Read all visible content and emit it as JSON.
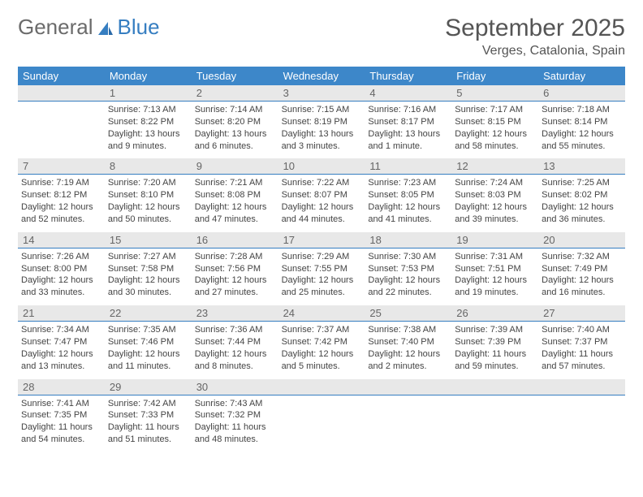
{
  "logo": {
    "text1": "General",
    "text2": "Blue"
  },
  "title": "September 2025",
  "location": "Verges, Catalonia, Spain",
  "colors": {
    "header_bg": "#3d87c9",
    "header_text": "#ffffff",
    "daynum_bg": "#e8e8e8",
    "daynum_border": "#367ec1",
    "body_text": "#444444",
    "logo_gray": "#6b6b6b",
    "logo_blue": "#367ec1"
  },
  "day_names": [
    "Sunday",
    "Monday",
    "Tuesday",
    "Wednesday",
    "Thursday",
    "Friday",
    "Saturday"
  ],
  "weeks": [
    {
      "nums": [
        "",
        "1",
        "2",
        "3",
        "4",
        "5",
        "6"
      ],
      "cells": [
        {
          "sunrise": "",
          "sunset": "",
          "daylight": ""
        },
        {
          "sunrise": "Sunrise: 7:13 AM",
          "sunset": "Sunset: 8:22 PM",
          "daylight": "Daylight: 13 hours and 9 minutes."
        },
        {
          "sunrise": "Sunrise: 7:14 AM",
          "sunset": "Sunset: 8:20 PM",
          "daylight": "Daylight: 13 hours and 6 minutes."
        },
        {
          "sunrise": "Sunrise: 7:15 AM",
          "sunset": "Sunset: 8:19 PM",
          "daylight": "Daylight: 13 hours and 3 minutes."
        },
        {
          "sunrise": "Sunrise: 7:16 AM",
          "sunset": "Sunset: 8:17 PM",
          "daylight": "Daylight: 13 hours and 1 minute."
        },
        {
          "sunrise": "Sunrise: 7:17 AM",
          "sunset": "Sunset: 8:15 PM",
          "daylight": "Daylight: 12 hours and 58 minutes."
        },
        {
          "sunrise": "Sunrise: 7:18 AM",
          "sunset": "Sunset: 8:14 PM",
          "daylight": "Daylight: 12 hours and 55 minutes."
        }
      ]
    },
    {
      "nums": [
        "7",
        "8",
        "9",
        "10",
        "11",
        "12",
        "13"
      ],
      "cells": [
        {
          "sunrise": "Sunrise: 7:19 AM",
          "sunset": "Sunset: 8:12 PM",
          "daylight": "Daylight: 12 hours and 52 minutes."
        },
        {
          "sunrise": "Sunrise: 7:20 AM",
          "sunset": "Sunset: 8:10 PM",
          "daylight": "Daylight: 12 hours and 50 minutes."
        },
        {
          "sunrise": "Sunrise: 7:21 AM",
          "sunset": "Sunset: 8:08 PM",
          "daylight": "Daylight: 12 hours and 47 minutes."
        },
        {
          "sunrise": "Sunrise: 7:22 AM",
          "sunset": "Sunset: 8:07 PM",
          "daylight": "Daylight: 12 hours and 44 minutes."
        },
        {
          "sunrise": "Sunrise: 7:23 AM",
          "sunset": "Sunset: 8:05 PM",
          "daylight": "Daylight: 12 hours and 41 minutes."
        },
        {
          "sunrise": "Sunrise: 7:24 AM",
          "sunset": "Sunset: 8:03 PM",
          "daylight": "Daylight: 12 hours and 39 minutes."
        },
        {
          "sunrise": "Sunrise: 7:25 AM",
          "sunset": "Sunset: 8:02 PM",
          "daylight": "Daylight: 12 hours and 36 minutes."
        }
      ]
    },
    {
      "nums": [
        "14",
        "15",
        "16",
        "17",
        "18",
        "19",
        "20"
      ],
      "cells": [
        {
          "sunrise": "Sunrise: 7:26 AM",
          "sunset": "Sunset: 8:00 PM",
          "daylight": "Daylight: 12 hours and 33 minutes."
        },
        {
          "sunrise": "Sunrise: 7:27 AM",
          "sunset": "Sunset: 7:58 PM",
          "daylight": "Daylight: 12 hours and 30 minutes."
        },
        {
          "sunrise": "Sunrise: 7:28 AM",
          "sunset": "Sunset: 7:56 PM",
          "daylight": "Daylight: 12 hours and 27 minutes."
        },
        {
          "sunrise": "Sunrise: 7:29 AM",
          "sunset": "Sunset: 7:55 PM",
          "daylight": "Daylight: 12 hours and 25 minutes."
        },
        {
          "sunrise": "Sunrise: 7:30 AM",
          "sunset": "Sunset: 7:53 PM",
          "daylight": "Daylight: 12 hours and 22 minutes."
        },
        {
          "sunrise": "Sunrise: 7:31 AM",
          "sunset": "Sunset: 7:51 PM",
          "daylight": "Daylight: 12 hours and 19 minutes."
        },
        {
          "sunrise": "Sunrise: 7:32 AM",
          "sunset": "Sunset: 7:49 PM",
          "daylight": "Daylight: 12 hours and 16 minutes."
        }
      ]
    },
    {
      "nums": [
        "21",
        "22",
        "23",
        "24",
        "25",
        "26",
        "27"
      ],
      "cells": [
        {
          "sunrise": "Sunrise: 7:34 AM",
          "sunset": "Sunset: 7:47 PM",
          "daylight": "Daylight: 12 hours and 13 minutes."
        },
        {
          "sunrise": "Sunrise: 7:35 AM",
          "sunset": "Sunset: 7:46 PM",
          "daylight": "Daylight: 12 hours and 11 minutes."
        },
        {
          "sunrise": "Sunrise: 7:36 AM",
          "sunset": "Sunset: 7:44 PM",
          "daylight": "Daylight: 12 hours and 8 minutes."
        },
        {
          "sunrise": "Sunrise: 7:37 AM",
          "sunset": "Sunset: 7:42 PM",
          "daylight": "Daylight: 12 hours and 5 minutes."
        },
        {
          "sunrise": "Sunrise: 7:38 AM",
          "sunset": "Sunset: 7:40 PM",
          "daylight": "Daylight: 12 hours and 2 minutes."
        },
        {
          "sunrise": "Sunrise: 7:39 AM",
          "sunset": "Sunset: 7:39 PM",
          "daylight": "Daylight: 11 hours and 59 minutes."
        },
        {
          "sunrise": "Sunrise: 7:40 AM",
          "sunset": "Sunset: 7:37 PM",
          "daylight": "Daylight: 11 hours and 57 minutes."
        }
      ]
    },
    {
      "nums": [
        "28",
        "29",
        "30",
        "",
        "",
        "",
        ""
      ],
      "cells": [
        {
          "sunrise": "Sunrise: 7:41 AM",
          "sunset": "Sunset: 7:35 PM",
          "daylight": "Daylight: 11 hours and 54 minutes."
        },
        {
          "sunrise": "Sunrise: 7:42 AM",
          "sunset": "Sunset: 7:33 PM",
          "daylight": "Daylight: 11 hours and 51 minutes."
        },
        {
          "sunrise": "Sunrise: 7:43 AM",
          "sunset": "Sunset: 7:32 PM",
          "daylight": "Daylight: 11 hours and 48 minutes."
        },
        {
          "sunrise": "",
          "sunset": "",
          "daylight": ""
        },
        {
          "sunrise": "",
          "sunset": "",
          "daylight": ""
        },
        {
          "sunrise": "",
          "sunset": "",
          "daylight": ""
        },
        {
          "sunrise": "",
          "sunset": "",
          "daylight": ""
        }
      ]
    }
  ]
}
